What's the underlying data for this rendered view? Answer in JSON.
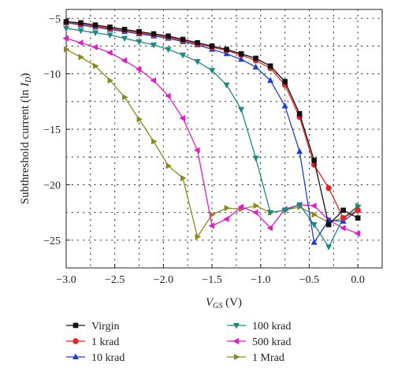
{
  "chart_data": {
    "type": "line",
    "xlabel_parts": {
      "main": "V",
      "sub": "GS",
      "unit": " (V)"
    },
    "ylabel_parts": {
      "main": "Subthreshold current (ln ",
      "italic": "I",
      "sub": "D",
      "close": ")"
    },
    "xlim": [
      -3.0,
      0.25
    ],
    "ylim": [
      -27.5,
      -4.2
    ],
    "xticks": [
      -3.0,
      -2.5,
      -2.0,
      -1.5,
      -1.0,
      -0.5,
      0.0
    ],
    "xtick_labels": [
      "−3.0",
      "−2.5",
      "−2.0",
      "−1.5",
      "−1.0",
      "−0.5",
      "0.0"
    ],
    "yticks": [
      -5,
      -10,
      -15,
      -20,
      -25
    ],
    "ytick_labels": [
      "−5",
      "−10",
      "−15",
      "−20",
      "−25"
    ],
    "grid": true,
    "legend_position": "bottom",
    "series": [
      {
        "name": "Virgin",
        "color": "#111111",
        "marker": "square",
        "x": [
          -3.0,
          -2.85,
          -2.7,
          -2.55,
          -2.4,
          -2.25,
          -2.1,
          -1.95,
          -1.8,
          -1.65,
          -1.5,
          -1.35,
          -1.2,
          -1.05,
          -0.9,
          -0.75,
          -0.6,
          -0.45,
          -0.3,
          -0.15,
          0.0
        ],
        "y": [
          -5.3,
          -5.4,
          -5.6,
          -5.8,
          -6.0,
          -6.2,
          -6.4,
          -6.6,
          -6.9,
          -7.2,
          -7.5,
          -7.8,
          -8.2,
          -8.6,
          -9.3,
          -10.7,
          -13.6,
          -17.8,
          -23.6,
          -22.3,
          -23.0
        ]
      },
      {
        "name": "1 krad",
        "color": "#e8231f",
        "marker": "circle",
        "x": [
          -3.0,
          -2.85,
          -2.7,
          -2.55,
          -2.4,
          -2.25,
          -2.1,
          -1.95,
          -1.8,
          -1.65,
          -1.5,
          -1.35,
          -1.2,
          -1.05,
          -0.9,
          -0.75,
          -0.6,
          -0.45,
          -0.3,
          -0.15,
          0.0
        ],
        "y": [
          -5.4,
          -5.5,
          -5.7,
          -5.9,
          -6.1,
          -6.3,
          -6.5,
          -6.7,
          -7.0,
          -7.3,
          -7.6,
          -7.9,
          -8.3,
          -8.8,
          -9.5,
          -11.0,
          -13.9,
          -18.2,
          -20.3,
          -23.0,
          -22.3
        ]
      },
      {
        "name": "10 krad",
        "color": "#1f3fd4",
        "marker": "triangle-up",
        "x": [
          -3.0,
          -2.85,
          -2.7,
          -2.55,
          -2.4,
          -2.25,
          -2.1,
          -1.95,
          -1.8,
          -1.65,
          -1.5,
          -1.35,
          -1.2,
          -1.05,
          -0.9,
          -0.75,
          -0.6,
          -0.45,
          -0.3,
          -0.15,
          0.0
        ],
        "y": [
          -5.4,
          -5.6,
          -5.8,
          -6.0,
          -6.2,
          -6.4,
          -6.6,
          -6.8,
          -7.1,
          -7.4,
          -7.8,
          -8.2,
          -8.7,
          -9.4,
          -10.6,
          -12.9,
          -17.0,
          -25.2,
          -23.2,
          -23.3,
          -22.3
        ]
      },
      {
        "name": "100 krad",
        "color": "#1a8a80",
        "marker": "triangle-down",
        "x": [
          -3.0,
          -2.85,
          -2.7,
          -2.55,
          -2.4,
          -2.25,
          -2.1,
          -1.95,
          -1.8,
          -1.65,
          -1.5,
          -1.35,
          -1.2,
          -1.05,
          -0.9,
          -0.75,
          -0.6,
          -0.45,
          -0.3,
          -0.15,
          0.0
        ],
        "y": [
          -5.9,
          -6.1,
          -6.3,
          -6.5,
          -6.8,
          -7.1,
          -7.4,
          -7.8,
          -8.3,
          -8.9,
          -9.7,
          -11.0,
          -13.2,
          -17.6,
          -22.5,
          -22.3,
          -21.8,
          -23.6,
          -25.6,
          -23.0,
          -22.0
        ]
      },
      {
        "name": "500 krad",
        "color": "#e01cc8",
        "marker": "triangle-left",
        "x": [
          -3.0,
          -2.85,
          -2.7,
          -2.55,
          -2.4,
          -2.25,
          -2.1,
          -1.95,
          -1.8,
          -1.65,
          -1.5,
          -1.35,
          -1.2,
          -1.05,
          -0.9,
          -0.75,
          -0.6,
          -0.45,
          -0.3,
          -0.15,
          0.0
        ],
        "y": [
          -6.8,
          -7.2,
          -7.6,
          -8.1,
          -8.8,
          -9.6,
          -10.6,
          -12.0,
          -14.0,
          -16.9,
          -23.7,
          -23.1,
          -22.0,
          -22.5,
          -23.9,
          -22.2,
          -21.8,
          -21.9,
          -23.2,
          -23.9,
          -24.4
        ]
      },
      {
        "name": "1 Mrad",
        "color": "#8a8a1a",
        "marker": "triangle-right",
        "x": [
          -3.0,
          -2.85,
          -2.7,
          -2.55,
          -2.4,
          -2.25,
          -2.1,
          -1.95,
          -1.8,
          -1.65,
          -1.5,
          -1.35,
          -1.2,
          -1.05,
          -0.9,
          -0.75,
          -0.6,
          -0.45,
          -0.3,
          -0.15,
          0.0
        ],
        "y": [
          -7.8,
          -8.5,
          -9.3,
          -10.6,
          -12.1,
          -14.1,
          -16.1,
          -18.3,
          -19.4,
          -24.7,
          -22.7,
          -22.1,
          -22.2,
          -21.9,
          -22.5,
          -22.3,
          -22.0,
          -22.7,
          -23.4,
          -23.0,
          -21.9
        ]
      }
    ]
  }
}
